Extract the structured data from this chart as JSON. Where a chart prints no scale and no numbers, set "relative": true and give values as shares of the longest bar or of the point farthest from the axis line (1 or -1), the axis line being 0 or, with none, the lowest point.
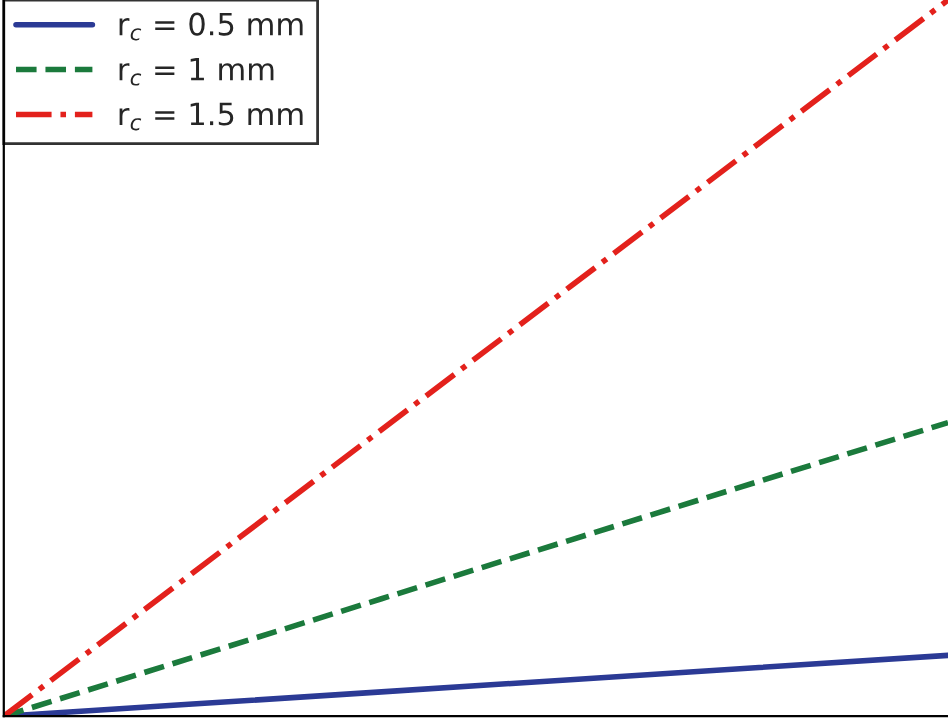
{
  "chart_data": {
    "type": "line",
    "relative": true,
    "categories": [
      null,
      null,
      null,
      null,
      null,
      null
    ],
    "series": [
      {
        "name": "r$_{c}$ = 0.5 mm",
        "color": "#2b3a95",
        "values": [
          0,
          0.017,
          0.034,
          0.051,
          0.068,
          0.085
        ],
        "line_style": "solid"
      },
      {
        "name": "r$_{c}$ = 1 mm",
        "color": "#1b7a3c",
        "values": [
          0,
          0.082,
          0.164,
          0.246,
          0.328,
          0.41
        ],
        "line_style": "dashed"
      },
      {
        "name": "r$_{c}$ = 1.5 mm",
        "color": "#e3211c",
        "values": [
          0,
          0.2,
          0.4,
          0.6,
          0.8,
          1
        ],
        "line_style": "dashdot"
      }
    ],
    "legend": "top left"
  }
}
